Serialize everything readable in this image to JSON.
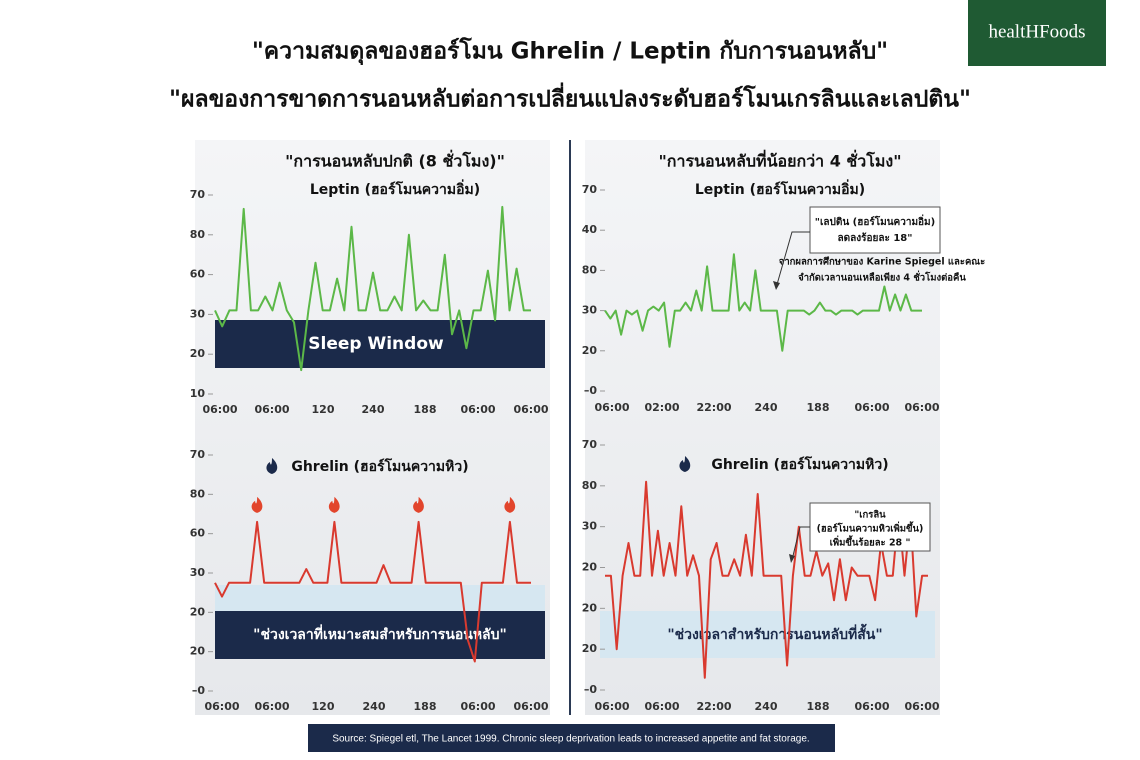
{
  "header": {
    "title_line1": "\"ความสมดุลของฮอร์โมน Ghrelin / Leptin กับการนอนหลับ\"",
    "title_line2": "\"ผลของการขาดการนอนหลับต่อการเปลี่ยนแปลงระดับฮอร์โมนเกรลินและเลปติน\""
  },
  "logo": {
    "text": "healtHFoods"
  },
  "source": "Source: Spiegel etl, The Lancet 1999. Chronic sleep deprivation leads to increased appetite and fat storage.",
  "chart_data": [
    {
      "type": "line",
      "title": "\"การนอนหลับปกติ (8 ชั่วโมง)\"",
      "subtitle": "Leptin (ฮอร์โมนความอิ่ม)",
      "color": "#5cb848",
      "band_label": "Sleep Window",
      "x_labels": [
        "06:00",
        "06:00",
        "120",
        "240",
        "188",
        "06:00",
        "06:00"
      ],
      "ylim": [
        0,
        5
      ],
      "yticks": [
        {
          "value": 5,
          "label": "70"
        },
        {
          "value": 4,
          "label": "80"
        },
        {
          "value": 3,
          "label": "60"
        },
        {
          "value": 2,
          "label": "30"
        },
        {
          "value": 1,
          "label": "20"
        },
        {
          "value": 0,
          "label": "10"
        }
      ],
      "values": [
        2.1,
        1.7,
        2.1,
        2.1,
        4.65,
        2.1,
        2.1,
        2.45,
        2.1,
        2.8,
        2.1,
        1.8,
        0.6,
        2.1,
        3.3,
        2.1,
        2.1,
        2.9,
        2.1,
        4.2,
        2.1,
        2.1,
        3.05,
        2.1,
        2.1,
        2.45,
        2.1,
        4.0,
        2.1,
        2.35,
        2.1,
        2.1,
        3.5,
        1.5,
        2.1,
        1.15,
        2.1,
        2.1,
        3.1,
        1.85,
        4.7,
        2.1,
        3.15,
        2.1,
        2.1
      ]
    },
    {
      "type": "line",
      "title": "\"การนอนหลับที่น้อยกว่า 4 ชั่วโมง\"",
      "subtitle": "Leptin (ฮอร์โมนความอิ่ม)",
      "color": "#5cb848",
      "callout": [
        "\"เลปติน  (ฮอร์โมนความอิ่ม)",
        "ลดลงร้อยละ 18\""
      ],
      "note": [
        "จากผลการศึกษาของ Karine Spiegel และคณะ",
        "จำกัดเวลานอนเหลือเพียง 4 ชั่วโมงต่อคืน"
      ],
      "x_labels": [
        "06:00",
        "02:00",
        "22:00",
        "240",
        "188",
        "06:00",
        "06:00"
      ],
      "ylim": [
        0,
        5
      ],
      "yticks": [
        {
          "value": 5,
          "label": "70"
        },
        {
          "value": 4,
          "label": "40"
        },
        {
          "value": 3,
          "label": "80"
        },
        {
          "value": 2,
          "label": "30"
        },
        {
          "value": 1,
          "label": "20"
        },
        {
          "value": 0,
          "label": "–0"
        }
      ],
      "values": [
        2.0,
        1.8,
        2.0,
        1.4,
        2.0,
        1.9,
        2.0,
        1.5,
        2.0,
        2.1,
        2.0,
        2.2,
        1.1,
        2.0,
        2.0,
        2.2,
        2.0,
        2.5,
        2.0,
        3.1,
        2.0,
        2.0,
        2.0,
        2.0,
        3.4,
        2.0,
        2.2,
        2.0,
        3.0,
        2.0,
        2.0,
        2.0,
        2.0,
        1.0,
        2.0,
        2.0,
        2.0,
        2.0,
        1.9,
        2.0,
        2.2,
        2.0,
        2.0,
        1.9,
        2.0,
        2.0,
        2.0,
        1.9,
        2.0,
        2.0,
        2.0,
        2.0,
        2.6,
        2.0,
        2.4,
        2.0,
        2.4,
        2.0,
        2.0,
        2.0
      ]
    },
    {
      "type": "line",
      "title": "Ghrelin  (ฮอร์โมนความหิว)",
      "color": "#d93a2f",
      "band_label": "\"ช่วงเวลาที่เหมาะสมสำหรับการนอนหลับ\"",
      "x_labels": [
        "06:00",
        "06:00",
        "120",
        "240",
        "188",
        "06:00",
        "06:00"
      ],
      "ylim": [
        0,
        6
      ],
      "yticks": [
        {
          "value": 6,
          "label": "70"
        },
        {
          "value": 5,
          "label": "80"
        },
        {
          "value": 4,
          "label": "60"
        },
        {
          "value": 3,
          "label": "30"
        },
        {
          "value": 2,
          "label": "20"
        },
        {
          "value": 1,
          "label": "20"
        },
        {
          "value": 0,
          "label": "–0"
        }
      ],
      "values": [
        2.75,
        2.4,
        2.75,
        2.75,
        2.75,
        2.75,
        4.3,
        2.75,
        2.75,
        2.75,
        2.75,
        2.75,
        2.75,
        3.1,
        2.75,
        2.75,
        2.75,
        4.3,
        2.75,
        2.75,
        2.75,
        2.75,
        2.75,
        2.75,
        3.2,
        2.75,
        2.75,
        2.75,
        2.75,
        4.3,
        2.75,
        2.75,
        2.75,
        2.75,
        2.75,
        2.75,
        1.3,
        0.75,
        2.75,
        2.75,
        2.75,
        2.75,
        4.3,
        2.75,
        2.75,
        2.75
      ]
    },
    {
      "type": "line",
      "title": "Ghrelin  (ฮอร์โมนความหิว)",
      "color": "#d93a2f",
      "band_label": "\"ช่วงเวลาสำหรับการนอนหลับที่สั้น\"",
      "callout": [
        "\"เกรลิน",
        "(ฮอร์โมนความหิวเพิ่มขึ้น)",
        "เพิ่มขึ้นร้อยละ 28 \""
      ],
      "x_labels": [
        "06:00",
        "06:00",
        "22:00",
        "240",
        "188",
        "06:00",
        "06:00"
      ],
      "ylim": [
        0,
        6
      ],
      "yticks": [
        {
          "value": 6,
          "label": "70"
        },
        {
          "value": 5,
          "label": "80"
        },
        {
          "value": 4,
          "label": "30"
        },
        {
          "value": 3,
          "label": "20"
        },
        {
          "value": 2,
          "label": "20"
        },
        {
          "value": 1,
          "label": "20"
        },
        {
          "value": 0,
          "label": "–0"
        }
      ],
      "values": [
        2.8,
        2.8,
        1.0,
        2.8,
        3.6,
        2.8,
        2.8,
        5.1,
        2.8,
        3.9,
        2.8,
        3.6,
        2.8,
        4.5,
        2.8,
        3.3,
        2.8,
        0.3,
        3.2,
        3.6,
        2.8,
        2.8,
        3.2,
        2.8,
        3.8,
        2.8,
        4.8,
        2.8,
        2.8,
        2.8,
        2.8,
        0.6,
        2.8,
        4.0,
        2.8,
        2.8,
        3.4,
        2.8,
        3.1,
        2.2,
        3.2,
        2.2,
        3.0,
        2.8,
        2.8,
        2.8,
        2.2,
        3.6,
        2.8,
        2.8,
        4.4,
        2.8,
        4.3,
        1.8,
        2.8,
        2.8
      ]
    }
  ]
}
